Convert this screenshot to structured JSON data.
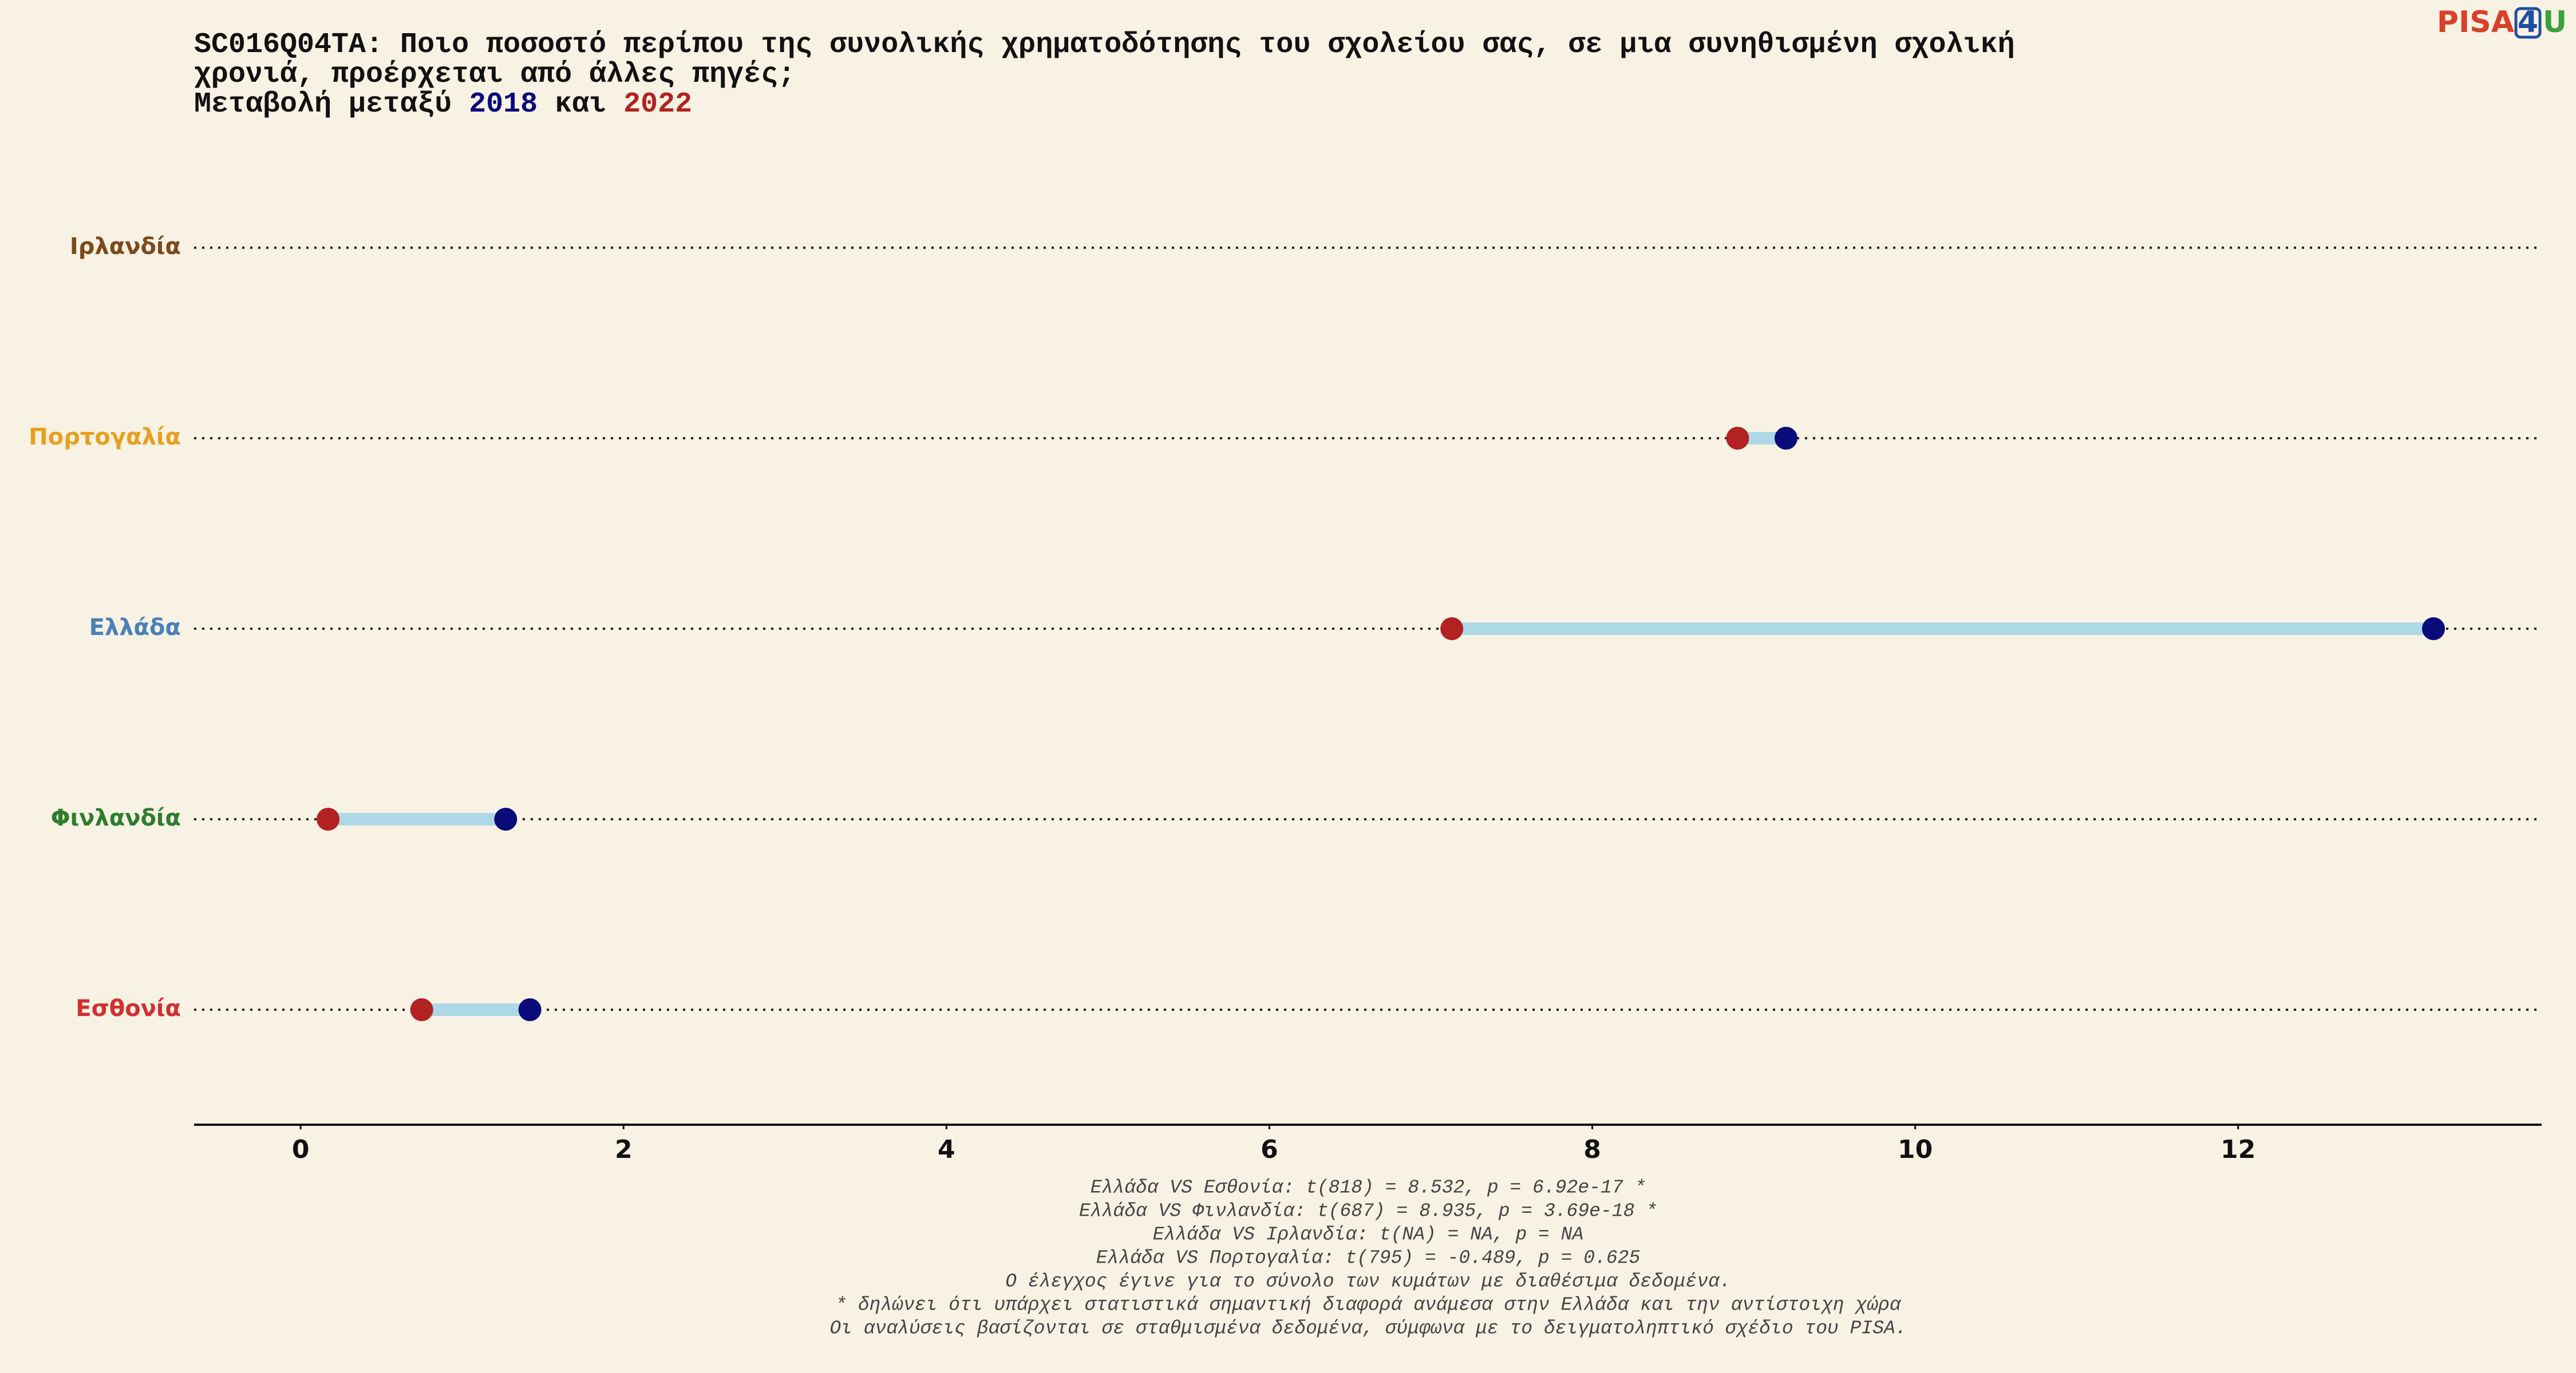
{
  "chart_data": {
    "type": "dumbbell",
    "title_lines": [
      "SC016Q04TA: Ποιο ποσοστό περίπου της συνολικής χρηματοδότησης του σχολείου σας, σε μια συνηθισμένη σχολική",
      "χρονιά, προέρχεται από άλλες πηγές;"
    ],
    "subtitle_prefix": "Μεταβολή μεταξύ",
    "subtitle_joiner": "και",
    "categories": [
      "Ιρλανδία",
      "Πορτογαλία",
      "Ελλάδα",
      "Φινλανδία",
      "Εσθονία"
    ],
    "category_colors": [
      "#7b4a1e",
      "#e6a020",
      "#4a80b8",
      "#2e7d2e",
      "#d03030"
    ],
    "series": [
      {
        "name": "2018",
        "color": "#0a0a78",
        "values": [
          null,
          9.2,
          13.21,
          1.27,
          1.42
        ]
      },
      {
        "name": "2022",
        "color": "#b22222",
        "values": [
          null,
          8.9,
          7.13,
          0.17,
          0.75
        ]
      }
    ],
    "segment_color": "#add8e6",
    "xlim": [
      -0.66,
      13.88
    ],
    "xticks": [
      0,
      2,
      4,
      6,
      8,
      10,
      12
    ],
    "footnotes": [
      "Ελλάδα VS Εσθονία: t(818) = 8.532, p = 6.92e-17 *",
      "Ελλάδα VS Φινλανδία: t(687) = 8.935, p = 3.69e-18 *",
      "Ελλάδα VS Ιρλανδία: t(NA) = NA, p = NA",
      "Ελλάδα VS Πορτογαλία: t(795) = -0.489, p = 0.625",
      "Ο έλεγχος έγινε για το σύνολο των κυμάτων με διαθέσιμα δεδομένα.",
      "* δηλώνει ότι υπάρχει στατιστικά σημαντική διαφορά ανάμεσα στην Ελλάδα και την αντίστοιχη χώρα",
      "Οι αναλύσεις βασίζονται σε σταθμισμένα δεδομένα, σύμφωνα με το δειγματοληπτικό σχέδιο του PISA."
    ],
    "logo": [
      "PISA",
      "4",
      "U"
    ]
  }
}
